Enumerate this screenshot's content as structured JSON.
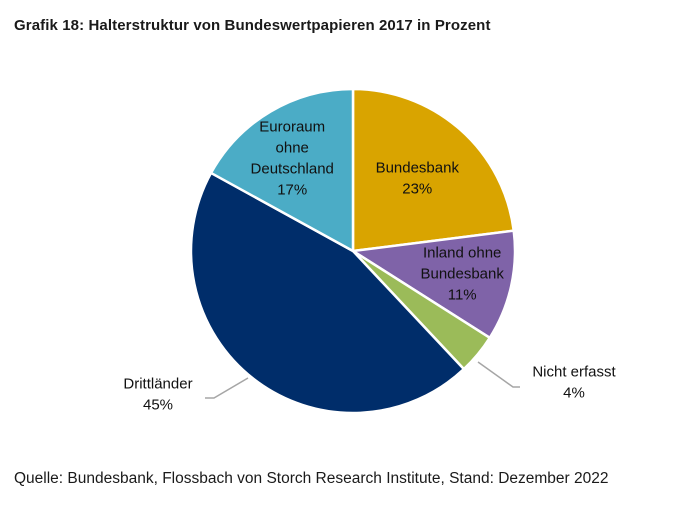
{
  "header": {
    "title": "Grafik 18: Halterstruktur von Bundeswertpapieren 2017 in Prozent"
  },
  "footer": {
    "source": "Quelle: Bundesbank, Flossbach von Storch Research Institute, Stand: Dezember 2022"
  },
  "chart_data": {
    "type": "pie",
    "title": "Grafik 18: Halterstruktur von Bundeswertpapieren 2017 in Prozent",
    "slices": [
      {
        "label_lines": [
          "Bundesbank"
        ],
        "value": 23,
        "value_label": "23%",
        "color": "#D9A400"
      },
      {
        "label_lines": [
          "Inland ohne",
          "Bundesbank"
        ],
        "value": 11,
        "value_label": "11%",
        "color": "#7F63A8"
      },
      {
        "label_lines": [
          "Nicht erfasst"
        ],
        "value": 4,
        "value_label": "4%",
        "color": "#9BBB59"
      },
      {
        "label_lines": [
          "Drittländer"
        ],
        "value": 45,
        "value_label": "45%",
        "color": "#002D6A"
      },
      {
        "label_lines": [
          "Euroraum",
          "ohne",
          "Deutschland"
        ],
        "value": 17,
        "value_label": "17%",
        "color": "#4BACC6"
      }
    ],
    "start": "12 o'clock",
    "direction": "clockwise",
    "legend": "none"
  }
}
